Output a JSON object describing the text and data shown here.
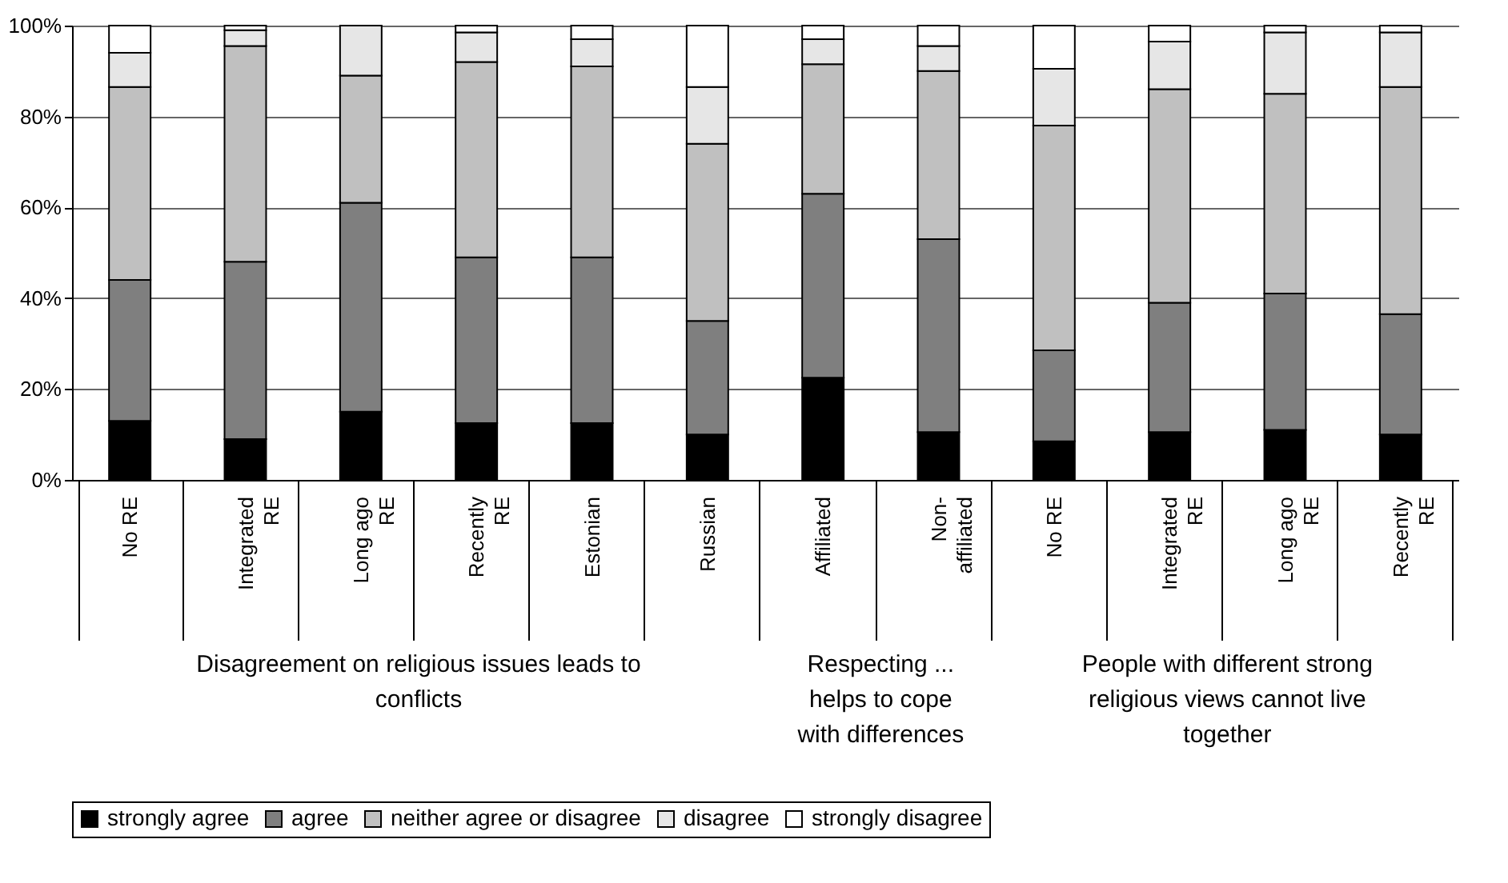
{
  "chart_data": {
    "type": "bar",
    "stacked": true,
    "categories": [
      "No RE",
      "Integrated RE",
      "Long ago RE",
      "Recently RE",
      "Estonian",
      "Russian",
      "Affiliated",
      "Non-affiliated",
      "No RE",
      "Integrated RE",
      "Long ago RE",
      "Recently RE"
    ],
    "series": [
      {
        "name": "strongly agree",
        "color": "#000000",
        "values": [
          13,
          9,
          15,
          12.5,
          12.5,
          10,
          22.5,
          10.5,
          8.5,
          10.5,
          11,
          10
        ]
      },
      {
        "name": "agree",
        "color": "#7f7f7f",
        "values": [
          31,
          39,
          46,
          36.5,
          36.5,
          25,
          40.5,
          42.5,
          20,
          28.5,
          30,
          26.5
        ]
      },
      {
        "name": "neither agree or disagree",
        "color": "#c0c0c0",
        "values": [
          42.5,
          47.5,
          28,
          43,
          42,
          39,
          28.5,
          37,
          49.5,
          47,
          44,
          50
        ]
      },
      {
        "name": "disagree",
        "color": "#e6e6e6",
        "values": [
          7.5,
          3.5,
          11,
          6.5,
          6,
          12.5,
          5.5,
          5.5,
          12.5,
          10.5,
          13.5,
          12
        ]
      },
      {
        "name": "strongly disagree",
        "color": "#ffffff",
        "values": [
          6,
          1,
          0,
          1.5,
          3,
          13.5,
          3,
          4.5,
          9.5,
          3.5,
          1.5,
          1.5
        ]
      }
    ],
    "ylim": [
      0,
      100
    ],
    "yticks": [
      {
        "value": 0,
        "label": "0%"
      },
      {
        "value": 20,
        "label": "20%"
      },
      {
        "value": 40,
        "label": "40%"
      },
      {
        "value": 60,
        "label": "60%"
      },
      {
        "value": 80,
        "label": "80%"
      },
      {
        "value": 100,
        "label": "100%"
      }
    ],
    "grid": "y",
    "legend": "bottom",
    "annotations": [
      "Disagreement on religious issues leads to conflicts",
      "Respecting ... helps to cope with differences",
      "People with different strong religious views cannot live together"
    ]
  }
}
